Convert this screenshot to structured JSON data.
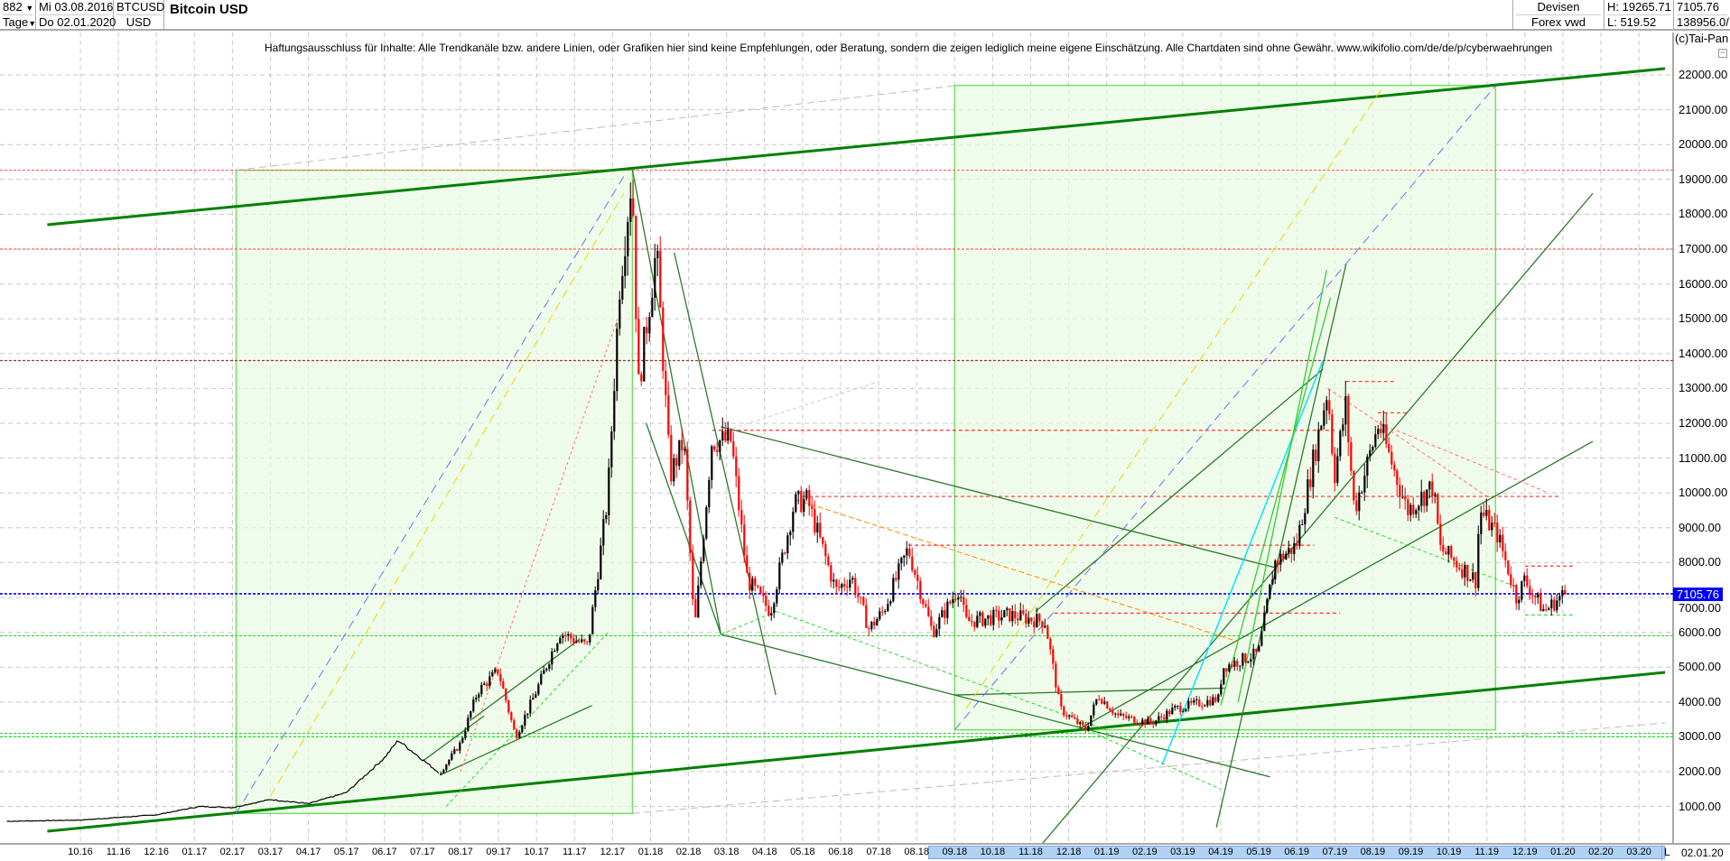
{
  "header": {
    "period_value": "882",
    "period_unit": "Tage",
    "start_date": "Mi 03.08.2016",
    "end_date": "Do 02.01.2020",
    "symbol": "BTCUSD",
    "currency": "USD",
    "title": "Bitcoin USD",
    "market": "Devisen",
    "source": "Forex vwd",
    "high": "H: 19265.71",
    "low": "L: 519.52",
    "last": "7105.76",
    "volume": "138956.0/"
  },
  "disclaimer": "Haftungsausschluss für Inhalte: Alle Trendkanäle bzw. andere Linien, oder Grafiken hier sind keine Empfehlungen, oder Beratung, sondern die zeigen lediglich meine eigene Einschätzung. Alle Chartdaten sind ohne Gewähr.  www.wikifolio.com/de/de/p/cyberwaehrungen",
  "copyright": "(c)Tai-Pan",
  "x_axis": {
    "end_label": "02.01.20",
    "l_button": "L"
  },
  "colors": {
    "up": "#000000",
    "down": "#ff0000",
    "channel": "#008000",
    "current": "#0000ff",
    "box": "#e9fbe3"
  },
  "chart_data": {
    "type": "candlestick",
    "title": "Bitcoin USD",
    "ylim": [
      0,
      22500
    ],
    "y_ticks": [
      "1000.00",
      "2000.00",
      "3000.00",
      "4000.00",
      "5000.00",
      "6000.00",
      "7000.00",
      "8000.00",
      "9000.00",
      "10000.00",
      "11000.00",
      "12000.00",
      "13000.00",
      "14000.00",
      "15000.00",
      "16000.00",
      "17000.00",
      "18000.00",
      "19000.00",
      "20000.00",
      "21000.00",
      "22000.00"
    ],
    "x_ticks": [
      "10.16",
      "11.16",
      "12.16",
      "01.17",
      "02.17",
      "03.17",
      "04.17",
      "05.17",
      "06.17",
      "07.17",
      "08.17",
      "09.17",
      "10.17",
      "11.17",
      "12.17",
      "01.18",
      "02.18",
      "03.18",
      "04.18",
      "05.18",
      "06.18",
      "07.18",
      "08.18",
      "09.18",
      "10.18",
      "11.18",
      "12.18",
      "01.19",
      "02.19",
      "03.19",
      "04.19",
      "05.19",
      "06.19",
      "07.19",
      "08.19",
      "09.19",
      "10.19",
      "11.19",
      "12.19",
      "01.20",
      "02.20",
      "03.20"
    ],
    "current_price": "7105.76",
    "line_until": "2017-07-15",
    "price_path": [
      [
        "2016-08-03",
        575
      ],
      [
        "2016-10-01",
        610
      ],
      [
        "2016-12-01",
        760
      ],
      [
        "2017-01-05",
        1000
      ],
      [
        "2017-02-01",
        970
      ],
      [
        "2017-03-01",
        1200
      ],
      [
        "2017-04-01",
        1080
      ],
      [
        "2017-05-01",
        1400
      ],
      [
        "2017-06-01",
        2400
      ],
      [
        "2017-06-12",
        2900
      ],
      [
        "2017-07-15",
        1950
      ],
      [
        "2017-08-01",
        2800
      ],
      [
        "2017-08-15",
        4300
      ],
      [
        "2017-09-01",
        4900
      ],
      [
        "2017-09-15",
        3000
      ],
      [
        "2017-10-01",
        4300
      ],
      [
        "2017-10-20",
        6000
      ],
      [
        "2017-11-12",
        5600
      ],
      [
        "2017-11-28",
        9900
      ],
      [
        "2017-12-07",
        16000
      ],
      [
        "2017-12-17",
        19200
      ],
      [
        "2017-12-22",
        13000
      ],
      [
        "2018-01-06",
        17000
      ],
      [
        "2018-01-17",
        10500
      ],
      [
        "2018-01-28",
        11500
      ],
      [
        "2018-02-06",
        6000
      ],
      [
        "2018-02-20",
        11500
      ],
      [
        "2018-03-05",
        11500
      ],
      [
        "2018-03-18",
        7500
      ],
      [
        "2018-04-06",
        6600
      ],
      [
        "2018-04-25",
        9700
      ],
      [
        "2018-05-05",
        9800
      ],
      [
        "2018-05-28",
        7200
      ],
      [
        "2018-06-10",
        7600
      ],
      [
        "2018-06-24",
        6100
      ],
      [
        "2018-07-05",
        6600
      ],
      [
        "2018-07-25",
        8400
      ],
      [
        "2018-08-14",
        6000
      ],
      [
        "2018-09-05",
        7300
      ],
      [
        "2018-09-10",
        6300
      ],
      [
        "2018-10-15",
        6500
      ],
      [
        "2018-11-13",
        6300
      ],
      [
        "2018-11-25",
        3800
      ],
      [
        "2018-12-15",
        3200
      ],
      [
        "2018-12-25",
        4200
      ],
      [
        "2019-01-10",
        3600
      ],
      [
        "2019-02-07",
        3400
      ],
      [
        "2019-02-25",
        3800
      ],
      [
        "2019-03-30",
        4100
      ],
      [
        "2019-04-03",
        5000
      ],
      [
        "2019-05-01",
        5400
      ],
      [
        "2019-05-14",
        8000
      ],
      [
        "2019-06-01",
        8500
      ],
      [
        "2019-06-26",
        13000
      ],
      [
        "2019-07-01",
        10500
      ],
      [
        "2019-07-10",
        12500
      ],
      [
        "2019-07-17",
        9500
      ],
      [
        "2019-08-06",
        12000
      ],
      [
        "2019-08-29",
        9500
      ],
      [
        "2019-09-19",
        10200
      ],
      [
        "2019-09-25",
        8400
      ],
      [
        "2019-10-23",
        7500
      ],
      [
        "2019-10-26",
        9500
      ],
      [
        "2019-11-10",
        8800
      ],
      [
        "2019-11-25",
        7000
      ],
      [
        "2019-12-01",
        7500
      ],
      [
        "2019-12-17",
        6600
      ],
      [
        "2020-01-02",
        7105.76
      ]
    ],
    "boxes": [
      {
        "from": [
          "2017-02-04",
          19265
        ],
        "to": [
          "2017-12-17",
          800
        ]
      },
      {
        "from": [
          "2018-09-01",
          21700
        ],
        "to": [
          "2019-11-08",
          3200
        ]
      }
    ],
    "h_levels": [
      {
        "price": 19265,
        "color": "#ff6060"
      },
      {
        "price": 17000,
        "color": "#ff6060"
      },
      {
        "price": 13800,
        "color": "#b03030"
      },
      {
        "price": 7105.76,
        "color": "#0000ff"
      },
      {
        "price": 5900,
        "color": "#22dd22"
      },
      {
        "price": 3100,
        "color": "#22dd22"
      },
      {
        "price": 3000,
        "color": "#22dd22"
      }
    ],
    "short_levels": [
      {
        "from": "2018-02-20",
        "to": "2019-07-01",
        "price": 11800,
        "color": "#ff3030"
      },
      {
        "from": "2018-05-01",
        "to": "2019-12-30",
        "price": 9900,
        "color": "#ff3030"
      },
      {
        "from": "2018-07-25",
        "to": "2019-06-15",
        "price": 8500,
        "color": "#ff3030"
      },
      {
        "from": "2018-11-20",
        "to": "2019-07-05",
        "price": 6550,
        "color": "#ff3030"
      },
      {
        "from": "2019-07-10",
        "to": "2019-08-20",
        "price": 13200,
        "color": "#ff3030"
      },
      {
        "from": "2019-08-05",
        "to": "2019-08-30",
        "price": 12300,
        "color": "#ff3030"
      },
      {
        "from": "2019-12-01",
        "to": "2020-01-10",
        "price": 7900,
        "color": "#ff3030"
      },
      {
        "from": "2019-12-01",
        "to": "2020-01-10",
        "price": 6500,
        "color": "#22dd22"
      }
    ],
    "trend_lines": [
      {
        "p1": [
          "2016-09-05",
          17700
        ],
        "p2": [
          "2020-03-22",
          22180
        ],
        "color": "#008000",
        "width": 3,
        "dash": ""
      },
      {
        "p1": [
          "2016-09-05",
          290
        ],
        "p2": [
          "2020-03-22",
          4850
        ],
        "color": "#008000",
        "width": 3,
        "dash": ""
      },
      {
        "p1": [
          "2017-02-04",
          19265
        ],
        "p2": [
          "2018-09-01",
          21690
        ],
        "color": "#bbbbbb",
        "width": 1,
        "dash": "8,5"
      },
      {
        "p1": [
          "2017-12-17",
          800
        ],
        "p2": [
          "2020-03-22",
          3400
        ],
        "color": "#bbbbbb",
        "width": 1,
        "dash": "8,5"
      },
      {
        "p1": [
          "2017-12-17",
          19265
        ],
        "p2": [
          "2018-02-27",
          5940
        ],
        "color": "#2a7a2a",
        "width": 1.3,
        "dash": ""
      },
      {
        "p1": [
          "2018-01-20",
          16900
        ],
        "p2": [
          "2018-04-10",
          4200
        ],
        "color": "#2a7a2a",
        "width": 1.3,
        "dash": ""
      },
      {
        "p1": [
          "2017-12-28",
          12000
        ],
        "p2": [
          "2018-02-27",
          5940
        ],
        "color": "#2a7a2a",
        "width": 1.3,
        "dash": ""
      },
      {
        "p1": [
          "2018-02-27",
          5940
        ],
        "p2": [
          "2019-05-10",
          1850
        ],
        "color": "#2a7a2a",
        "width": 1.3,
        "dash": ""
      },
      {
        "p1": [
          "2018-02-27",
          11900
        ],
        "p2": [
          "2019-05-15",
          7850
        ],
        "color": "#2a7a2a",
        "width": 1.3,
        "dash": ""
      },
      {
        "p1": [
          "2018-11-10",
          -80
        ],
        "p2": [
          "2020-01-25",
          18600
        ],
        "color": "#2a7a2a",
        "width": 1.3,
        "dash": ""
      },
      {
        "p1": [
          "2019-03-28",
          400
        ],
        "p2": [
          "2019-07-10",
          16560
        ],
        "color": "#2a7a2a",
        "width": 1.3,
        "dash": ""
      },
      {
        "p1": [
          "2018-12-10",
          3240
        ],
        "p2": [
          "2020-01-25",
          11480
        ],
        "color": "#2a7a2a",
        "width": 1.3,
        "dash": ""
      },
      {
        "p1": [
          "2019-06-22",
          13550
        ],
        "p2": [
          "2018-11-05",
          6600
        ],
        "color": "#2a7a2a",
        "width": 1.3,
        "dash": ""
      },
      {
        "p1": [
          "2017-07-01",
          2300
        ],
        "p2": [
          "2017-08-20",
          3600
        ],
        "color": "#2a7a2a",
        "width": 1.3,
        "dash": ""
      },
      {
        "p1": [
          "2017-07-15",
          1900
        ],
        "p2": [
          "2017-11-15",
          3900
        ],
        "color": "#2a7a2a",
        "width": 1.3,
        "dash": ""
      },
      {
        "p1": [
          "2017-08-10",
          3500
        ],
        "p2": [
          "2017-11-05",
          5800
        ],
        "color": "#2a7a2a",
        "width": 1.3,
        "dash": ""
      },
      {
        "p1": [
          "2018-09-01",
          4200
        ],
        "p2": [
          "2019-04-05",
          4400
        ],
        "color": "#2a7a2a",
        "width": 1.3,
        "dash": ""
      },
      {
        "p1": [
          "2019-02-15",
          2200
        ],
        "p2": [
          "2019-06-22",
          13800
        ],
        "color": "#00e5ff",
        "width": 1.5,
        "dash": ""
      },
      {
        "p1": [
          "2019-04-15",
          4000
        ],
        "p2": [
          "2019-06-25",
          16400
        ],
        "color": "#33cc33",
        "width": 1.3,
        "dash": ""
      },
      {
        "p1": [
          "2019-04-01",
          3900
        ],
        "p2": [
          "2019-06-28",
          15600
        ],
        "color": "#33cc33",
        "width": 1.3,
        "dash": ""
      },
      {
        "p1": [
          "2017-02-04",
          800
        ],
        "p2": [
          "2017-12-12",
          19200
        ],
        "color": "#7070ee",
        "width": 1,
        "dash": "10,6"
      },
      {
        "p1": [
          "2017-03-01",
          1300
        ],
        "p2": [
          "2017-12-10",
          18600
        ],
        "color": "#dddd00",
        "width": 1,
        "dash": "10,6"
      },
      {
        "p1": [
          "2018-09-01",
          3200
        ],
        "p2": [
          "2019-11-08",
          21690
        ],
        "color": "#7070ee",
        "width": 1,
        "dash": "10,6"
      },
      {
        "p1": [
          "2018-09-10",
          3800
        ],
        "p2": [
          "2019-08-10",
          21700
        ],
        "color": "#dddd00",
        "width": 1,
        "dash": "10,6"
      },
      {
        "p1": [
          "2018-04-25",
          9820
        ],
        "p2": [
          "2019-04-15",
          5730
        ],
        "color": "#ff8800",
        "width": 1,
        "dash": "6,3"
      },
      {
        "p1": [
          "2017-07-20",
          1000
        ],
        "p2": [
          "2017-11-28",
          6000
        ],
        "color": "#22dd22",
        "width": 1,
        "dash": "4,3"
      },
      {
        "p1": [
          "2017-08-01",
          2000
        ],
        "p2": [
          "2017-12-05",
          15000
        ],
        "color": "#ff7070",
        "width": 1,
        "dash": "3,3"
      },
      {
        "p1": [
          "2018-02-27",
          5940
        ],
        "p2": [
          "2018-04-10",
          6600
        ],
        "color": "#22dd22",
        "width": 1,
        "dash": "4,3"
      },
      {
        "p1": [
          "2018-04-10",
          6600
        ],
        "p2": [
          "2019-01-01",
          3200
        ],
        "color": "#22dd22",
        "width": 1,
        "dash": "4,3"
      },
      {
        "p1": [
          "2018-12-15",
          3200
        ],
        "p2": [
          "2019-04-01",
          1500
        ],
        "color": "#22dd22",
        "width": 1,
        "dash": "4,3"
      },
      {
        "p1": [
          "2019-07-01",
          9300
        ],
        "p2": [
          "2019-11-25",
          7300
        ],
        "color": "#22dd22",
        "width": 1,
        "dash": "4,3"
      },
      {
        "p1": [
          "2019-06-26",
          13000
        ],
        "p2": [
          "2019-11-01",
          9900
        ],
        "color": "#ff7070",
        "width": 1,
        "dash": "4,3"
      },
      {
        "p1": [
          "2019-08-06",
          12000
        ],
        "p2": [
          "2019-12-20",
          10000
        ],
        "color": "#ff7070",
        "width": 1,
        "dash": "4,3"
      },
      {
        "p1": [
          "2018-03-01",
          11800
        ],
        "p2": [
          "2018-07-01",
          13200
        ],
        "color": "#cccccc",
        "width": 1,
        "dash": "4,3"
      }
    ]
  }
}
